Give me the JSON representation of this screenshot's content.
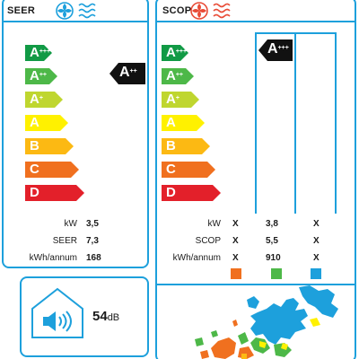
{
  "cooling": {
    "header": "SEER",
    "scale": [
      {
        "letter": "A",
        "sup": "+++",
        "color": "#119a45"
      },
      {
        "letter": "A",
        "sup": "++",
        "color": "#4db848"
      },
      {
        "letter": "A",
        "sup": "+",
        "color": "#bfd62f"
      },
      {
        "letter": "A",
        "sup": "",
        "color": "#fff100"
      },
      {
        "letter": "B",
        "sup": "",
        "color": "#fcb913"
      },
      {
        "letter": "C",
        "sup": "",
        "color": "#f0701f"
      },
      {
        "letter": "D",
        "sup": "",
        "color": "#e3202a"
      }
    ],
    "rating": {
      "letter": "A",
      "sup": "++"
    },
    "specs": [
      {
        "label": "kW",
        "value": "3,5"
      },
      {
        "label": "SEER",
        "value": "7,3"
      },
      {
        "label": "kWh/annum",
        "value": "168"
      }
    ]
  },
  "heating": {
    "header": "SCOP",
    "scale": [
      {
        "letter": "A",
        "sup": "+++",
        "color": "#119a45"
      },
      {
        "letter": "A",
        "sup": "++",
        "color": "#4db848"
      },
      {
        "letter": "A",
        "sup": "+",
        "color": "#bfd62f"
      },
      {
        "letter": "A",
        "sup": "",
        "color": "#fff100"
      },
      {
        "letter": "B",
        "sup": "",
        "color": "#fcb913"
      },
      {
        "letter": "C",
        "sup": "",
        "color": "#f0701f"
      },
      {
        "letter": "D",
        "sup": "",
        "color": "#e3202a"
      }
    ],
    "rating": {
      "letter": "A",
      "sup": "+++"
    },
    "specs": [
      {
        "label": "kW",
        "warm": "X",
        "average": "3,8",
        "cold": "X"
      },
      {
        "label": "SCOP",
        "warm": "X",
        "average": "5,5",
        "cold": "X"
      },
      {
        "label": "kWh/annum",
        "warm": "X",
        "average": "910",
        "cold": "X"
      }
    ],
    "zone_colors": {
      "warm": "#f0701f",
      "average": "#4db848",
      "cold": "#1da0dc"
    }
  },
  "noise": {
    "value": "54",
    "unit": "dB"
  },
  "icons": {
    "cooling": "fan-snowflake-icon",
    "heating": "fan-heat-icon",
    "sound": "speaker-icon",
    "map": "europe-climate-map"
  }
}
